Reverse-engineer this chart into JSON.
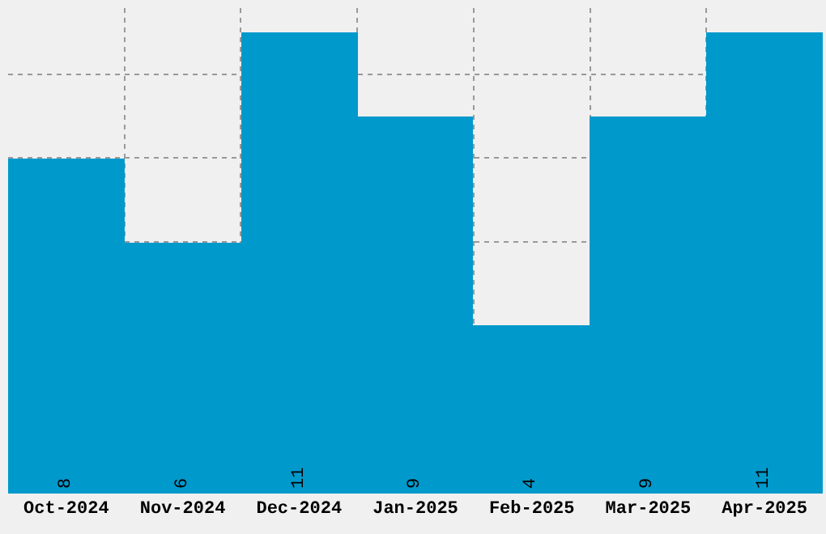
{
  "chart_data": {
    "type": "bar",
    "categories": [
      "Oct-2024",
      "Nov-2024",
      "Dec-2024",
      "Jan-2025",
      "Feb-2025",
      "Mar-2025",
      "Apr-2025"
    ],
    "values": [
      8,
      6,
      11,
      9,
      4,
      9,
      11
    ],
    "color": "#0099cc",
    "tick_labels": "x",
    "data_labels": true,
    "grid": true,
    "legend": false
  }
}
